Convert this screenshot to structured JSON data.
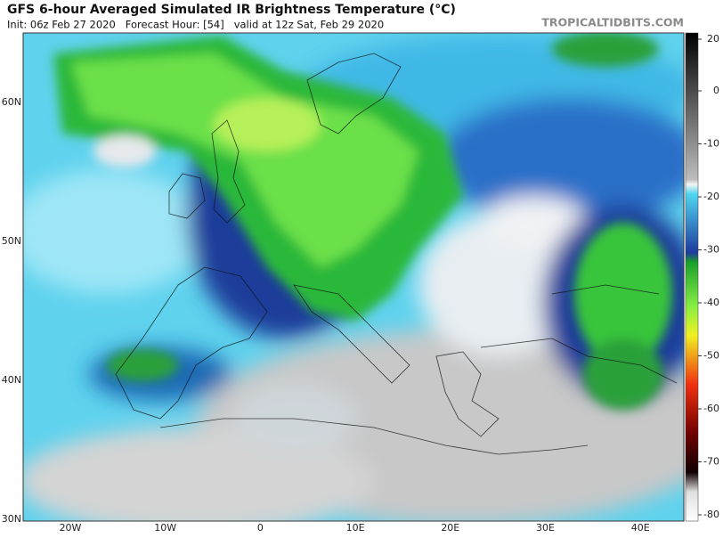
{
  "header": {
    "title": "GFS 6-hour Averaged Simulated IR Brightness Temperature (°C)",
    "subtitle": "Init: 06z Feb 27 2020   Forecast Hour: [54]   valid at 12z Sat, Feb 29 2020",
    "credit": "TROPICALTIDBITS.COM"
  },
  "map": {
    "lat_labels": [
      "60N",
      "50N",
      "40N",
      "30N"
    ],
    "lon_labels": [
      "20W",
      "10W",
      "0",
      "10E",
      "20E",
      "30E",
      "40E"
    ]
  },
  "colorbar": {
    "ticks": [
      20,
      0,
      -10,
      -20,
      -30,
      -40,
      -50,
      -60,
      -70,
      -80
    ]
  }
}
